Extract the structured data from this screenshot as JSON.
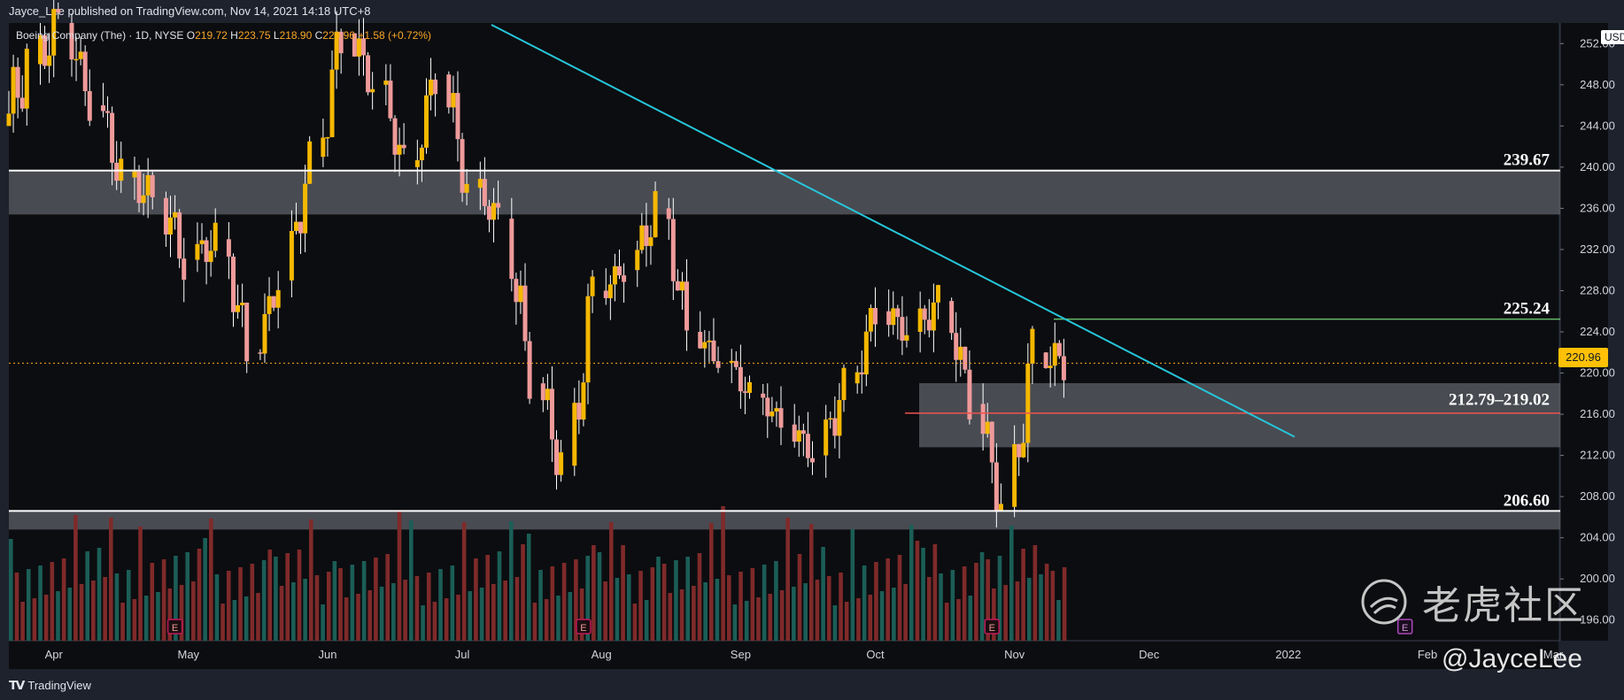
{
  "header": {
    "published": "Jayce_Lee published on TradingView.com, Nov 14, 2021 14:18 UTC+8"
  },
  "legend": {
    "symbol": "Boeing Company (The) · 1D, NYSE",
    "open_label": "O",
    "open": "219.72",
    "high_label": "H",
    "high": "223.75",
    "low_label": "L",
    "low": "218.90",
    "close_label": "C",
    "close": "220.96",
    "change": "+1.58 (+0.72%)"
  },
  "price_axis": {
    "currency": "USD",
    "current_price": "220.96",
    "ticks": [
      "252.00",
      "248.00",
      "244.00",
      "240.00",
      "236.00",
      "232.00",
      "228.00",
      "224.00",
      "220.00",
      "216.00",
      "212.00",
      "208.00",
      "204.00",
      "200.00",
      "196.00"
    ]
  },
  "time_axis": {
    "ticks": [
      "Apr",
      "May",
      "Jun",
      "Jul",
      "Aug",
      "Sep",
      "Oct",
      "Nov",
      "Dec",
      "2022",
      "Feb",
      "Mar"
    ]
  },
  "levels": {
    "resistance_top": "239.67",
    "green_line": "225.24",
    "zone": "212.79–219.02",
    "support": "206.60"
  },
  "earnings_marker": "E",
  "footer": {
    "brand": "TradingView"
  },
  "watermark": {
    "text": "老虎社区",
    "handle": "@JayceLee"
  },
  "colors": {
    "background": "#0c0d10",
    "frame": "#1e222d",
    "bull_candle": "#f5b800",
    "bear_candle": "#ef9a9a",
    "trendline": "#26c6da",
    "green_level": "#66bb6a",
    "red_level": "#ef5350",
    "zone_fill": "#5d6068",
    "volume_up": "#1b5e57",
    "volume_down": "#7f2a2a"
  },
  "chart_data": {
    "type": "candlestick",
    "y_range": [
      194,
      254
    ],
    "x_range": [
      "2021-03-22",
      "2022-03-01"
    ],
    "ohlc_weekly": [
      {
        "date": "2021-03-22",
        "o": 244,
        "h": 252,
        "l": 232,
        "c": 250
      },
      {
        "date": "2021-03-29",
        "o": 250,
        "h": 258,
        "l": 243,
        "c": 254
      },
      {
        "date": "2021-04-05",
        "o": 254,
        "h": 256,
        "l": 244,
        "c": 246
      },
      {
        "date": "2021-04-12",
        "o": 246,
        "h": 251,
        "l": 237,
        "c": 239
      },
      {
        "date": "2021-04-19",
        "o": 239,
        "h": 242,
        "l": 231,
        "c": 237
      },
      {
        "date": "2021-04-26",
        "o": 237,
        "h": 240,
        "l": 226,
        "c": 231
      },
      {
        "date": "2021-05-03",
        "o": 231,
        "h": 236,
        "l": 226,
        "c": 233
      },
      {
        "date": "2021-05-10",
        "o": 233,
        "h": 236,
        "l": 220,
        "c": 222
      },
      {
        "date": "2021-05-17",
        "o": 222,
        "h": 231,
        "l": 221,
        "c": 229
      },
      {
        "date": "2021-05-24",
        "o": 229,
        "h": 243,
        "l": 227,
        "c": 241
      },
      {
        "date": "2021-05-31",
        "o": 241,
        "h": 258,
        "l": 240,
        "c": 253
      },
      {
        "date": "2021-06-07",
        "o": 253,
        "h": 256,
        "l": 245,
        "c": 248
      },
      {
        "date": "2021-06-14",
        "o": 248,
        "h": 250,
        "l": 238,
        "c": 240
      },
      {
        "date": "2021-06-21",
        "o": 240,
        "h": 251,
        "l": 238,
        "c": 249
      },
      {
        "date": "2021-06-28",
        "o": 249,
        "h": 252,
        "l": 236,
        "c": 238
      },
      {
        "date": "2021-07-05",
        "o": 238,
        "h": 241,
        "l": 232,
        "c": 235
      },
      {
        "date": "2021-07-12",
        "o": 235,
        "h": 237,
        "l": 217,
        "c": 219
      },
      {
        "date": "2021-07-19",
        "o": 219,
        "h": 222,
        "l": 206,
        "c": 211
      },
      {
        "date": "2021-07-26",
        "o": 211,
        "h": 230,
        "l": 210,
        "c": 228
      },
      {
        "date": "2021-08-02",
        "o": 228,
        "h": 232,
        "l": 225,
        "c": 230
      },
      {
        "date": "2021-08-09",
        "o": 230,
        "h": 241,
        "l": 228,
        "c": 236
      },
      {
        "date": "2021-08-16",
        "o": 236,
        "h": 237,
        "l": 222,
        "c": 224
      },
      {
        "date": "2021-08-23",
        "o": 224,
        "h": 226,
        "l": 220,
        "c": 221
      },
      {
        "date": "2021-08-30",
        "o": 221,
        "h": 223,
        "l": 216,
        "c": 218
      },
      {
        "date": "2021-09-06",
        "o": 218,
        "h": 219,
        "l": 213,
        "c": 215
      },
      {
        "date": "2021-09-13",
        "o": 215,
        "h": 217,
        "l": 210,
        "c": 212
      },
      {
        "date": "2021-09-20",
        "o": 212,
        "h": 221,
        "l": 207,
        "c": 219
      },
      {
        "date": "2021-09-27",
        "o": 219,
        "h": 230,
        "l": 218,
        "c": 226
      },
      {
        "date": "2021-10-04",
        "o": 226,
        "h": 229,
        "l": 221,
        "c": 224
      },
      {
        "date": "2021-10-11",
        "o": 224,
        "h": 232,
        "l": 222,
        "c": 227
      },
      {
        "date": "2021-10-18",
        "o": 227,
        "h": 228,
        "l": 215,
        "c": 217
      },
      {
        "date": "2021-10-25",
        "o": 217,
        "h": 219,
        "l": 205,
        "c": 207
      },
      {
        "date": "2021-11-01",
        "o": 207,
        "h": 225,
        "l": 206,
        "c": 222
      },
      {
        "date": "2021-11-08",
        "o": 222,
        "h": 227,
        "l": 217,
        "c": 220.96
      }
    ]
  }
}
